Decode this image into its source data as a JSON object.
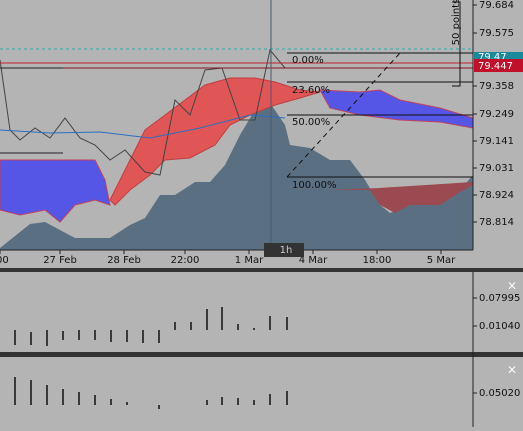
{
  "price_axis": {
    "labels": [
      "79.684",
      "79.575",
      "79.358",
      "79.249",
      "79.141",
      "79.031",
      "78.924",
      "78.814"
    ],
    "current_price": "79.447",
    "hidden_label": "79.47"
  },
  "time_axis": {
    "labels": [
      "00",
      "27 Feb",
      "28 Feb",
      "22:00",
      "1 Mar",
      "4 Mar",
      "18:00",
      "5 Mar"
    ]
  },
  "fibonacci": {
    "levels": [
      "0.00%",
      "23.60%",
      "50.00%",
      "100.00%"
    ]
  },
  "ruler": {
    "label": "50 points"
  },
  "timeframe": "1h",
  "indicators": [
    {
      "axis_labels": [
        "0.07995",
        "0.01040"
      ],
      "close": "×"
    },
    {
      "axis_labels": [
        "0.05020"
      ],
      "close": "×"
    }
  ]
}
